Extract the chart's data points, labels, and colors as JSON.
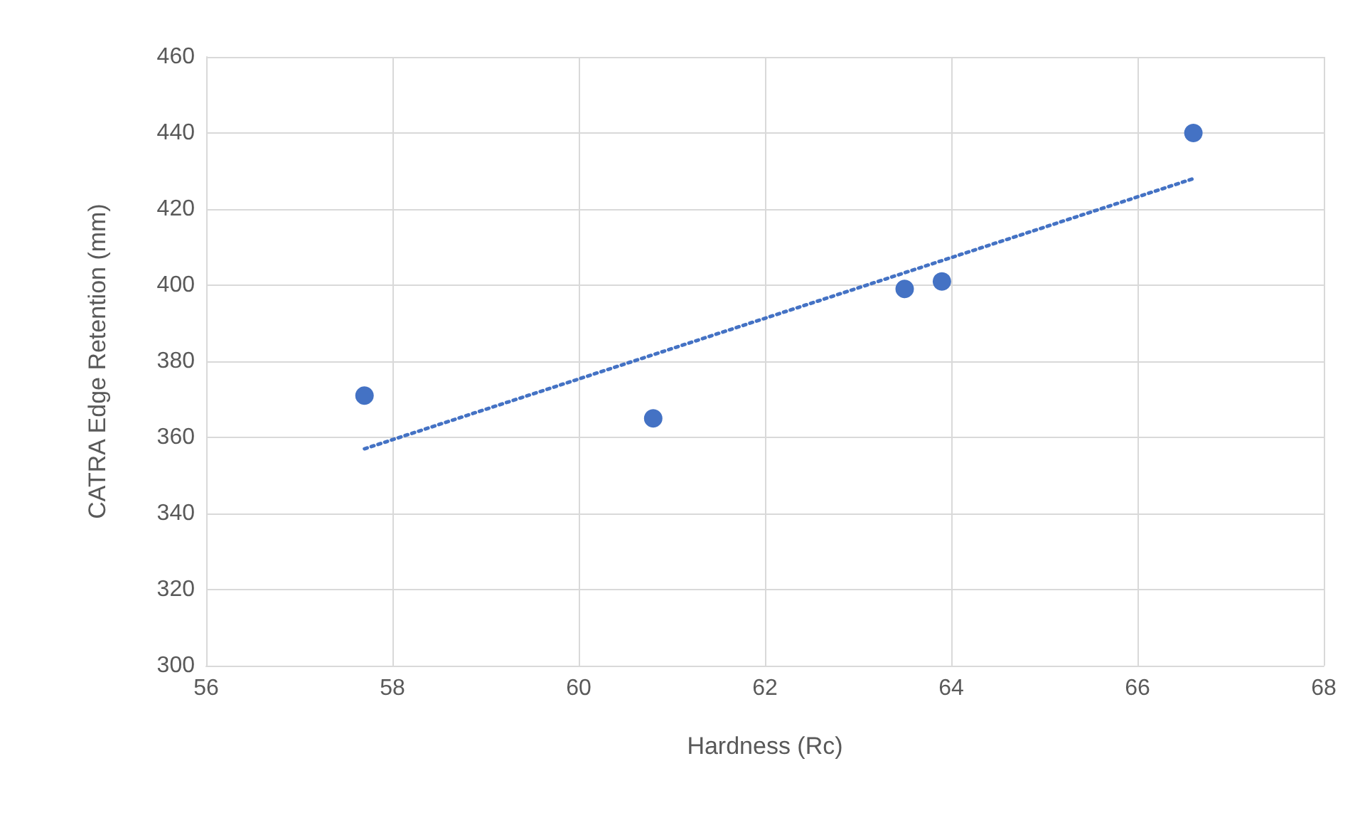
{
  "chart_data": {
    "type": "scatter",
    "xlabel": "Hardness (Rc)",
    "ylabel": "CATRA Edge Retention (mm)",
    "xlim": [
      56,
      68
    ],
    "xticks": [
      56,
      58,
      60,
      62,
      64,
      66,
      68
    ],
    "ylim": [
      300,
      460
    ],
    "yticks": [
      300,
      320,
      340,
      360,
      380,
      400,
      420,
      440,
      460
    ],
    "grid": true,
    "marker": "circle",
    "series": [
      {
        "color": "#4472c4",
        "x": [
          57.7,
          60.8,
          63.5,
          63.9,
          66.6
        ],
        "values": [
          371,
          365,
          399,
          401,
          440
        ]
      },
      {
        "type": "line",
        "color": "#4472c4",
        "line_style": "dotted",
        "marker": "none",
        "x": [
          57.7,
          66.6
        ],
        "values": [
          357,
          428
        ]
      }
    ]
  }
}
